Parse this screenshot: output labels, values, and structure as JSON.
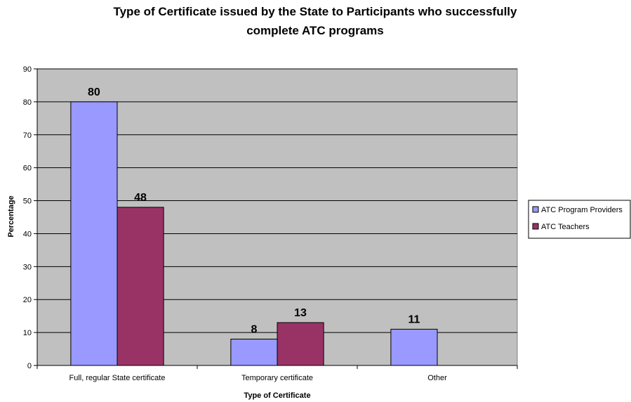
{
  "chart_data": {
    "type": "bar",
    "title_line1": "Type of Certificate issued by the State to Participants who successfully",
    "title_line2": "complete ATC programs",
    "xlabel": "Type of Certificate",
    "ylabel": "Percentage",
    "ylim": [
      0,
      90
    ],
    "ytick_step": 10,
    "grid": true,
    "legend_position": "right",
    "categories": [
      "Full, regular State certificate",
      "Temporary certificate",
      "Other"
    ],
    "series": [
      {
        "name": "ATC Program Providers",
        "color": "#9999ff",
        "values": [
          80,
          8,
          11
        ],
        "labels": [
          "80",
          "8",
          "11"
        ]
      },
      {
        "name": "ATC Teachers",
        "color": "#993366",
        "values": [
          48,
          13,
          null
        ],
        "labels": [
          "48",
          "13",
          ""
        ]
      }
    ],
    "plot_background": "#c0c0c0"
  }
}
